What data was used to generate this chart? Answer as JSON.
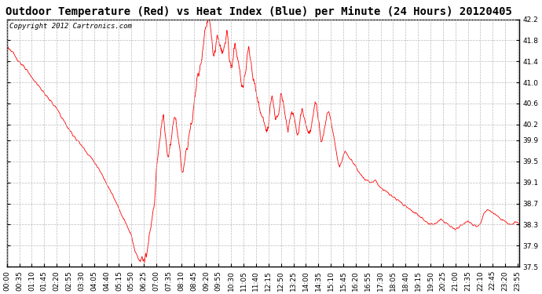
{
  "title": "Outdoor Temperature (Red) vs Heat Index (Blue) per Minute (24 Hours) 20120405",
  "copyright_text": "Copyright 2012 Cartronics.com",
  "ylim": [
    37.5,
    42.2
  ],
  "yticks": [
    37.5,
    37.9,
    38.3,
    38.7,
    39.1,
    39.5,
    39.9,
    40.2,
    40.6,
    41.0,
    41.4,
    41.8,
    42.2
  ],
  "line_color": "#ff0000",
  "bg_color": "#ffffff",
  "grid_color": "#bbbbbb",
  "title_fontsize": 10,
  "copyright_fontsize": 6.5,
  "tick_fontsize": 6.5,
  "xtick_labels": [
    "00:00",
    "00:35",
    "01:10",
    "01:45",
    "02:20",
    "02:55",
    "03:30",
    "04:05",
    "04:40",
    "05:15",
    "05:50",
    "06:25",
    "07:00",
    "07:35",
    "08:10",
    "08:45",
    "09:20",
    "09:55",
    "10:30",
    "11:05",
    "11:40",
    "12:15",
    "12:50",
    "13:25",
    "14:00",
    "14:35",
    "15:10",
    "15:45",
    "16:20",
    "16:55",
    "17:30",
    "18:05",
    "18:40",
    "19:15",
    "19:50",
    "20:25",
    "21:00",
    "21:35",
    "22:10",
    "22:45",
    "23:20",
    "23:55"
  ],
  "keypoints": [
    [
      0,
      41.7
    ],
    [
      35,
      41.4
    ],
    [
      70,
      41.1
    ],
    [
      105,
      40.8
    ],
    [
      140,
      40.5
    ],
    [
      175,
      40.1
    ],
    [
      210,
      39.8
    ],
    [
      245,
      39.5
    ],
    [
      280,
      39.1
    ],
    [
      315,
      38.6
    ],
    [
      350,
      38.1
    ],
    [
      355,
      37.95
    ],
    [
      360,
      37.8
    ],
    [
      370,
      37.65
    ],
    [
      375,
      37.6
    ],
    [
      385,
      37.65
    ],
    [
      390,
      37.75
    ],
    [
      395,
      37.85
    ],
    [
      400,
      38.1
    ],
    [
      410,
      38.5
    ],
    [
      380,
      37.7
    ],
    [
      383,
      37.62
    ],
    [
      387,
      37.58
    ],
    [
      392,
      37.68
    ],
    [
      398,
      37.95
    ],
    [
      405,
      38.3
    ],
    [
      415,
      38.7
    ],
    [
      420,
      39.4
    ],
    [
      430,
      39.9
    ],
    [
      435,
      40.2
    ],
    [
      440,
      40.35
    ],
    [
      445,
      40.0
    ],
    [
      450,
      39.7
    ],
    [
      455,
      39.6
    ],
    [
      460,
      39.8
    ],
    [
      465,
      40.1
    ],
    [
      470,
      40.25
    ],
    [
      475,
      40.3
    ],
    [
      480,
      40.1
    ],
    [
      485,
      39.7
    ],
    [
      490,
      39.4
    ],
    [
      495,
      39.3
    ],
    [
      500,
      39.5
    ],
    [
      505,
      39.7
    ],
    [
      510,
      39.9
    ],
    [
      520,
      40.3
    ],
    [
      530,
      40.8
    ],
    [
      540,
      41.2
    ],
    [
      550,
      41.6
    ],
    [
      555,
      41.9
    ],
    [
      560,
      42.05
    ],
    [
      565,
      42.15
    ],
    [
      568,
      42.2
    ],
    [
      570,
      42.1
    ],
    [
      575,
      41.8
    ],
    [
      580,
      41.5
    ],
    [
      585,
      41.6
    ],
    [
      590,
      41.75
    ],
    [
      595,
      41.8
    ],
    [
      600,
      41.7
    ],
    [
      605,
      41.5
    ],
    [
      610,
      41.6
    ],
    [
      615,
      41.8
    ],
    [
      618,
      42.0
    ],
    [
      620,
      41.9
    ],
    [
      625,
      41.5
    ],
    [
      630,
      41.3
    ],
    [
      635,
      41.5
    ],
    [
      640,
      41.7
    ],
    [
      645,
      41.6
    ],
    [
      650,
      41.4
    ],
    [
      655,
      41.2
    ],
    [
      660,
      41.0
    ],
    [
      665,
      40.9
    ],
    [
      670,
      41.1
    ],
    [
      675,
      41.5
    ],
    [
      680,
      41.6
    ],
    [
      685,
      41.4
    ],
    [
      690,
      41.2
    ],
    [
      695,
      41.0
    ],
    [
      700,
      40.8
    ],
    [
      705,
      40.6
    ],
    [
      710,
      40.5
    ],
    [
      715,
      40.4
    ],
    [
      720,
      40.3
    ],
    [
      725,
      40.15
    ],
    [
      730,
      40.0
    ],
    [
      735,
      40.2
    ],
    [
      740,
      40.6
    ],
    [
      745,
      40.7
    ],
    [
      750,
      40.5
    ],
    [
      755,
      40.3
    ],
    [
      760,
      40.4
    ],
    [
      765,
      40.6
    ],
    [
      770,
      40.8
    ],
    [
      775,
      40.7
    ],
    [
      780,
      40.5
    ],
    [
      785,
      40.3
    ],
    [
      790,
      40.1
    ],
    [
      795,
      40.3
    ],
    [
      800,
      40.5
    ],
    [
      805,
      40.4
    ],
    [
      810,
      40.2
    ],
    [
      815,
      40.0
    ],
    [
      820,
      40.1
    ],
    [
      825,
      40.4
    ],
    [
      830,
      40.5
    ],
    [
      835,
      40.3
    ],
    [
      840,
      40.2
    ],
    [
      845,
      40.1
    ],
    [
      850,
      40.0
    ],
    [
      855,
      40.2
    ],
    [
      860,
      40.4
    ],
    [
      865,
      40.6
    ],
    [
      870,
      40.55
    ],
    [
      875,
      40.3
    ],
    [
      880,
      40.05
    ],
    [
      885,
      39.9
    ],
    [
      890,
      40.0
    ],
    [
      895,
      40.2
    ],
    [
      900,
      40.4
    ],
    [
      905,
      40.45
    ],
    [
      910,
      40.3
    ],
    [
      915,
      40.1
    ],
    [
      920,
      39.9
    ],
    [
      925,
      39.7
    ],
    [
      930,
      39.5
    ],
    [
      935,
      39.4
    ],
    [
      940,
      39.5
    ],
    [
      945,
      39.6
    ],
    [
      950,
      39.7
    ],
    [
      960,
      39.6
    ],
    [
      970,
      39.5
    ],
    [
      980,
      39.4
    ],
    [
      990,
      39.3
    ],
    [
      1000,
      39.2
    ],
    [
      1010,
      39.15
    ],
    [
      1020,
      39.1
    ],
    [
      1030,
      39.1
    ],
    [
      1035,
      39.15
    ],
    [
      1040,
      39.1
    ],
    [
      1050,
      39.0
    ],
    [
      1060,
      38.95
    ],
    [
      1070,
      38.9
    ],
    [
      1080,
      38.85
    ],
    [
      1090,
      38.8
    ],
    [
      1100,
      38.75
    ],
    [
      1110,
      38.7
    ],
    [
      1120,
      38.65
    ],
    [
      1130,
      38.6
    ],
    [
      1140,
      38.55
    ],
    [
      1150,
      38.5
    ],
    [
      1160,
      38.45
    ],
    [
      1170,
      38.4
    ],
    [
      1180,
      38.35
    ],
    [
      1190,
      38.3
    ],
    [
      1200,
      38.3
    ],
    [
      1210,
      38.35
    ],
    [
      1220,
      38.4
    ],
    [
      1230,
      38.35
    ],
    [
      1240,
      38.3
    ],
    [
      1250,
      38.25
    ],
    [
      1260,
      38.2
    ],
    [
      1270,
      38.25
    ],
    [
      1280,
      38.3
    ],
    [
      1290,
      38.35
    ],
    [
      1300,
      38.35
    ],
    [
      1310,
      38.3
    ],
    [
      1320,
      38.25
    ],
    [
      1330,
      38.3
    ],
    [
      1340,
      38.5
    ],
    [
      1350,
      38.6
    ],
    [
      1360,
      38.55
    ],
    [
      1370,
      38.5
    ],
    [
      1380,
      38.45
    ],
    [
      1390,
      38.4
    ],
    [
      1400,
      38.35
    ],
    [
      1410,
      38.3
    ],
    [
      1420,
      38.3
    ],
    [
      1430,
      38.35
    ],
    [
      1439,
      38.3
    ]
  ]
}
